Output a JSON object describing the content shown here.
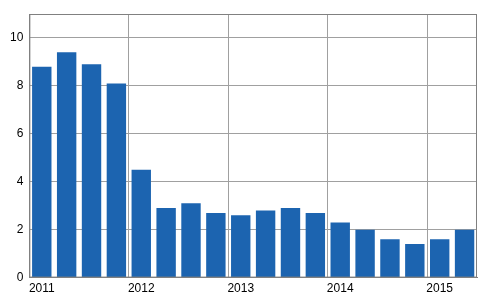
{
  "chart_data": {
    "type": "bar",
    "categories": [
      "2011",
      null,
      null,
      null,
      "2012",
      null,
      null,
      null,
      "2013",
      null,
      null,
      null,
      "2014",
      null,
      null,
      null,
      "2015",
      null
    ],
    "values": [
      8.8,
      9.4,
      8.9,
      8.1,
      4.5,
      2.9,
      3.1,
      2.7,
      2.6,
      2.8,
      2.9,
      2.7,
      2.3,
      2.0,
      1.6,
      1.4,
      1.6,
      2.0
    ],
    "color": "#1c64b0",
    "ylim": [
      0,
      11
    ],
    "yticks": [
      0,
      2,
      4,
      6,
      8,
      10
    ],
    "grid": true
  }
}
